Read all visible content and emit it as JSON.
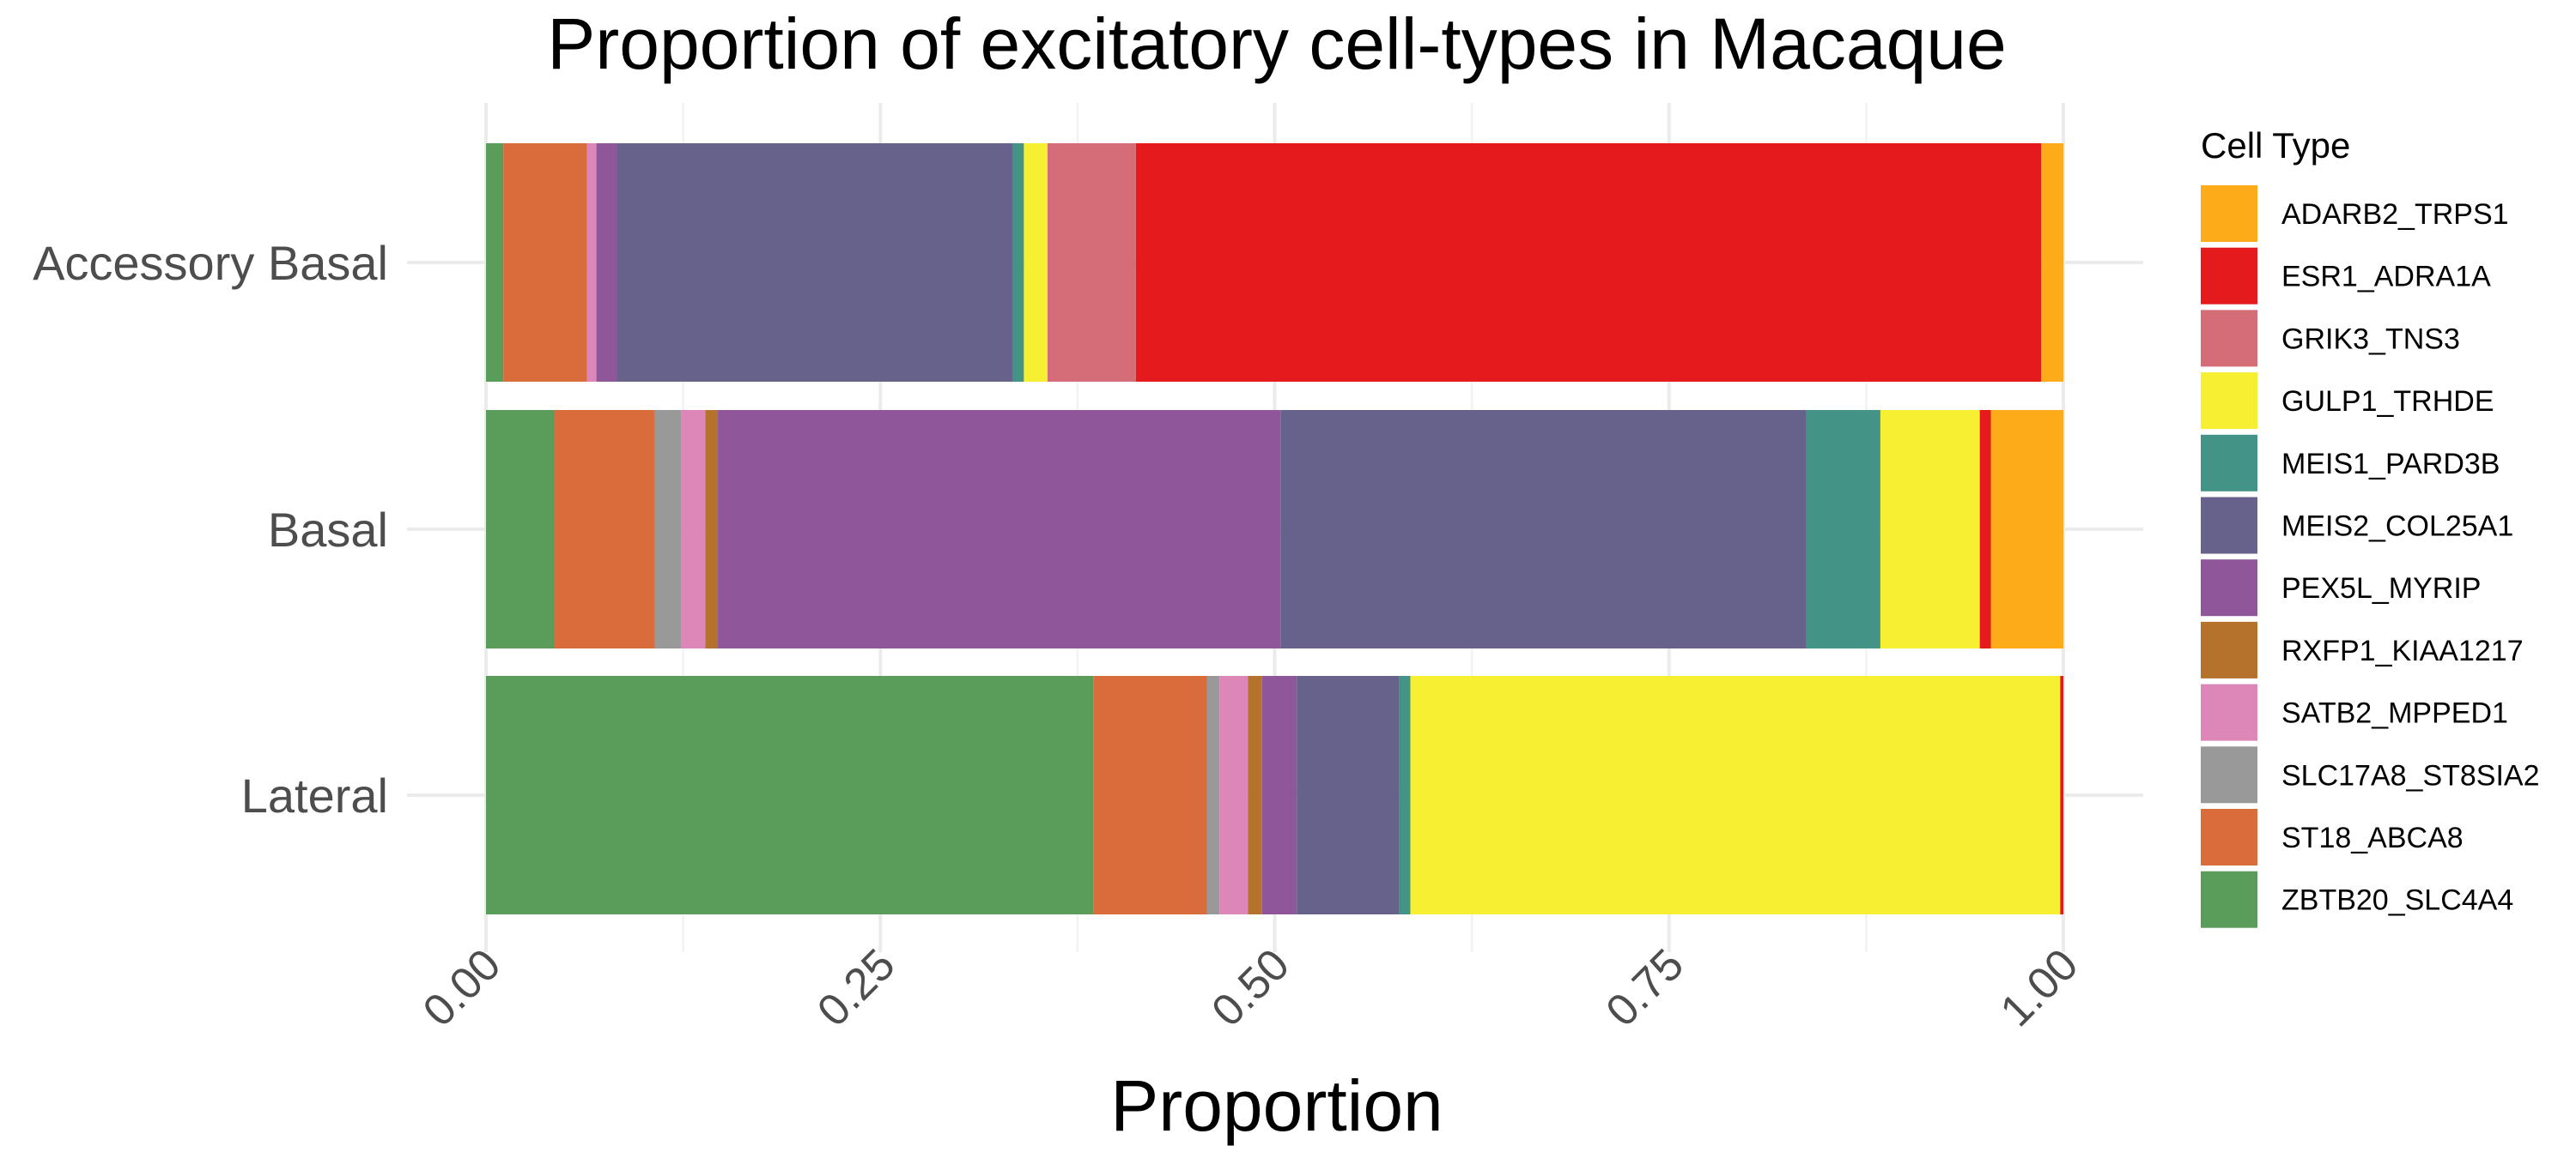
{
  "chart_data": {
    "type": "bar",
    "orientation": "horizontal",
    "stacked": true,
    "title": "Proportion of excitatory cell-types in Macaque",
    "xlabel": "Proportion",
    "ylabel": "",
    "xlim": [
      0,
      1
    ],
    "x_ticks": [
      "0.00",
      "0.25",
      "0.50",
      "0.75",
      "1.00"
    ],
    "x_tick_values": [
      0,
      0.25,
      0.5,
      0.75,
      1.0
    ],
    "grid": true,
    "categories": [
      "Accessory Basal",
      "Basal",
      "Lateral"
    ],
    "legend": {
      "title": "Cell Type",
      "position": "right"
    },
    "series": [
      {
        "name": "ZBTB20_SLC4A4",
        "color": "#5a9c5a",
        "values": [
          0.011,
          0.043,
          0.385
        ]
      },
      {
        "name": "ST18_ABCA8",
        "color": "#d96c3b",
        "values": [
          0.053,
          0.064,
          0.072
        ]
      },
      {
        "name": "SLC17A8_ST8SIA2",
        "color": "#999999",
        "values": [
          0.0,
          0.017,
          0.008
        ]
      },
      {
        "name": "SATB2_MPPED1",
        "color": "#dc87b7",
        "values": [
          0.006,
          0.015,
          0.018
        ]
      },
      {
        "name": "RXFP1_KIAA1217",
        "color": "#b5722c",
        "values": [
          0.0,
          0.008,
          0.009
        ]
      },
      {
        "name": "PEX5L_MYRIP",
        "color": "#8f5699",
        "values": [
          0.013,
          0.357,
          0.022
        ]
      },
      {
        "name": "MEIS2_COL25A1",
        "color": "#67628b",
        "values": [
          0.251,
          0.333,
          0.065
        ]
      },
      {
        "name": "MEIS1_PARD3B",
        "color": "#449387",
        "values": [
          0.007,
          0.047,
          0.007
        ]
      },
      {
        "name": "GULP1_TRHDE",
        "color": "#f6ef32",
        "values": [
          0.015,
          0.063,
          0.412
        ]
      },
      {
        "name": "GRIK3_TNS3",
        "color": "#d46d78",
        "values": [
          0.056,
          0.0,
          0.0
        ]
      },
      {
        "name": "ESR1_ADRA1A",
        "color": "#e41a1c",
        "values": [
          0.574,
          0.007,
          0.002
        ]
      },
      {
        "name": "ADARB2_TRPS1",
        "color": "#fdab18",
        "values": [
          0.014,
          0.046,
          0.0
        ]
      }
    ],
    "legend_order": [
      "ADARB2_TRPS1",
      "ESR1_ADRA1A",
      "GRIK3_TNS3",
      "GULP1_TRHDE",
      "MEIS1_PARD3B",
      "MEIS2_COL25A1",
      "PEX5L_MYRIP",
      "RXFP1_KIAA1217",
      "SATB2_MPPED1",
      "SLC17A8_ST8SIA2",
      "ST18_ABCA8",
      "ZBTB20_SLC4A4"
    ]
  }
}
